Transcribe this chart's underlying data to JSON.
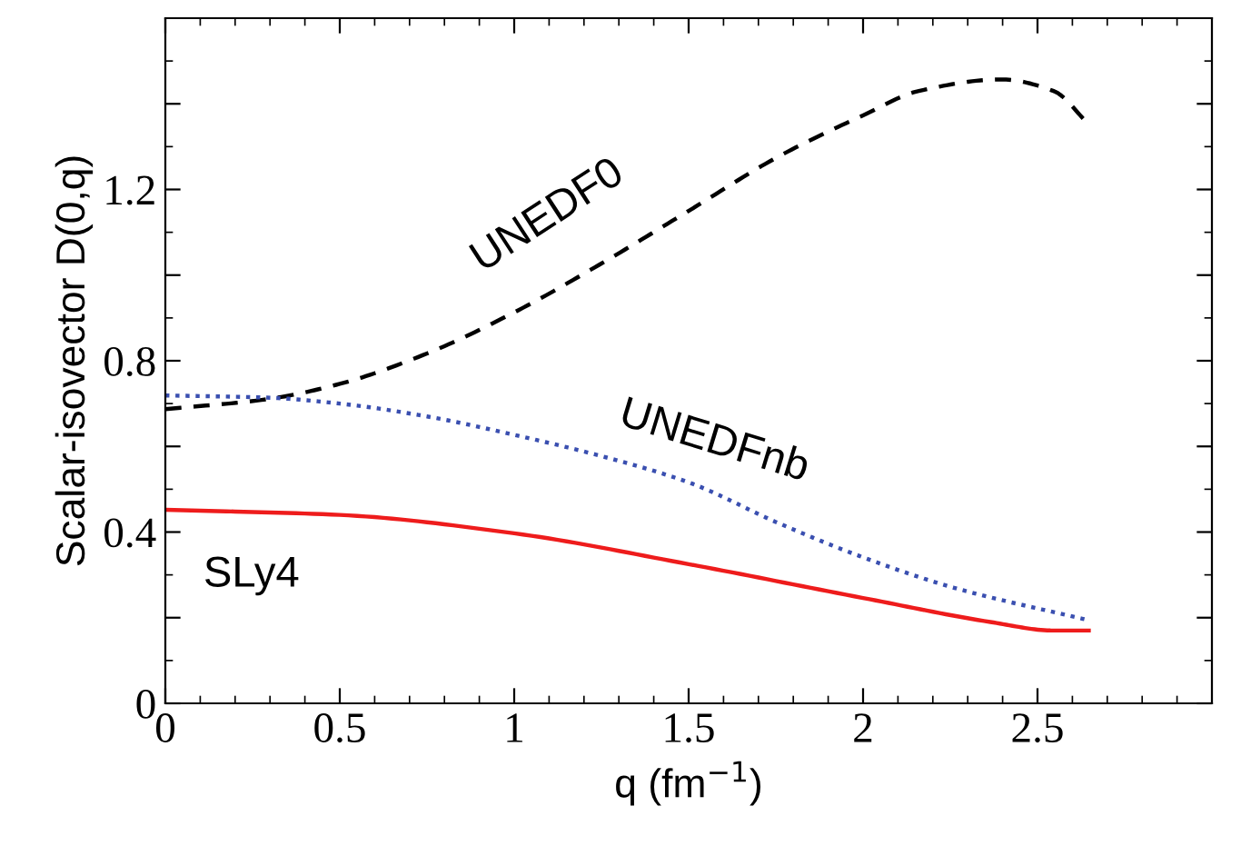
{
  "chart_data": {
    "type": "line",
    "xlabel": "q (fm$^{−1}$)",
    "ylabel": "Scalar-isovector D(0,q)",
    "xlim": [
      0,
      3
    ],
    "ylim": [
      0,
      1.6
    ],
    "xticks": [
      0,
      0.5,
      1,
      1.5,
      2,
      2.5
    ],
    "yticks": [
      0,
      {
        "value": 0.2,
        "label": null
      },
      0.4,
      {
        "value": 0.6,
        "label": null
      },
      0.8,
      {
        "value": 1.0,
        "label": null
      },
      1.2,
      {
        "value": 1.4,
        "label": null
      }
    ],
    "grid": false,
    "legend": false,
    "marker": "none",
    "series": [
      {
        "name": "UNEDF0",
        "color": "#000000",
        "line_style": "dashed",
        "x": [
          0,
          0.29,
          0.5,
          0.75,
          1.0,
          1.256,
          1.5,
          1.76,
          2.0,
          2.16,
          2.395,
          2.546,
          2.647
        ],
        "values": [
          0.687,
          0.71,
          0.746,
          0.817,
          0.913,
          1.03,
          1.15,
          1.278,
          1.373,
          1.43,
          1.457,
          1.43,
          1.352
        ]
      },
      {
        "name": "UNEDFnb",
        "color": "#3a4fb0",
        "line_style": "dotted",
        "x": [
          0,
          0.29,
          0.5,
          0.75,
          1.0,
          1.256,
          1.5,
          1.76,
          2.0,
          2.26,
          2.647
        ],
        "values": [
          0.719,
          0.714,
          0.7,
          0.67,
          0.627,
          0.576,
          0.516,
          0.42,
          0.341,
          0.27,
          0.194
        ]
      },
      {
        "name": "SLy4",
        "color": "#ee1c1c",
        "line_style": "solid",
        "x": [
          0,
          0.5,
          1.0,
          1.5,
          2.0,
          2.365,
          2.546,
          2.647
        ],
        "values": [
          0.452,
          0.44,
          0.397,
          0.325,
          0.246,
          0.19,
          0.17,
          0.17
        ]
      }
    ]
  }
}
